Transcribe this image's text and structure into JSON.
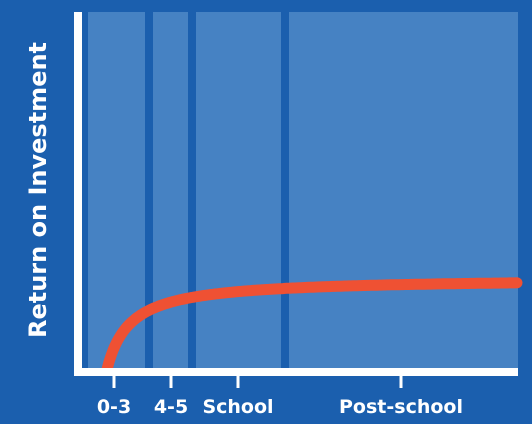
{
  "colors": {
    "background": "#1b5fae",
    "plot_fill": "#4682c3",
    "divider": "#1b5fae",
    "axis": "#ffffff",
    "curve": "#ef5133",
    "text": "#ffffff"
  },
  "chart_data": {
    "type": "line",
    "title": "",
    "xlabel": "",
    "ylabel": "Return on Investment",
    "x_categories": [
      "0-3",
      "4-5",
      "School",
      "Post-school"
    ],
    "stage_dividers_after": [
      "0-3",
      "4-5",
      "School"
    ],
    "grid": false,
    "legend": "none",
    "series": [
      {
        "shape": "decreasing convex curve, steep at ages 0-3 and flattening through post-school",
        "color": "#ef5133"
      }
    ]
  }
}
